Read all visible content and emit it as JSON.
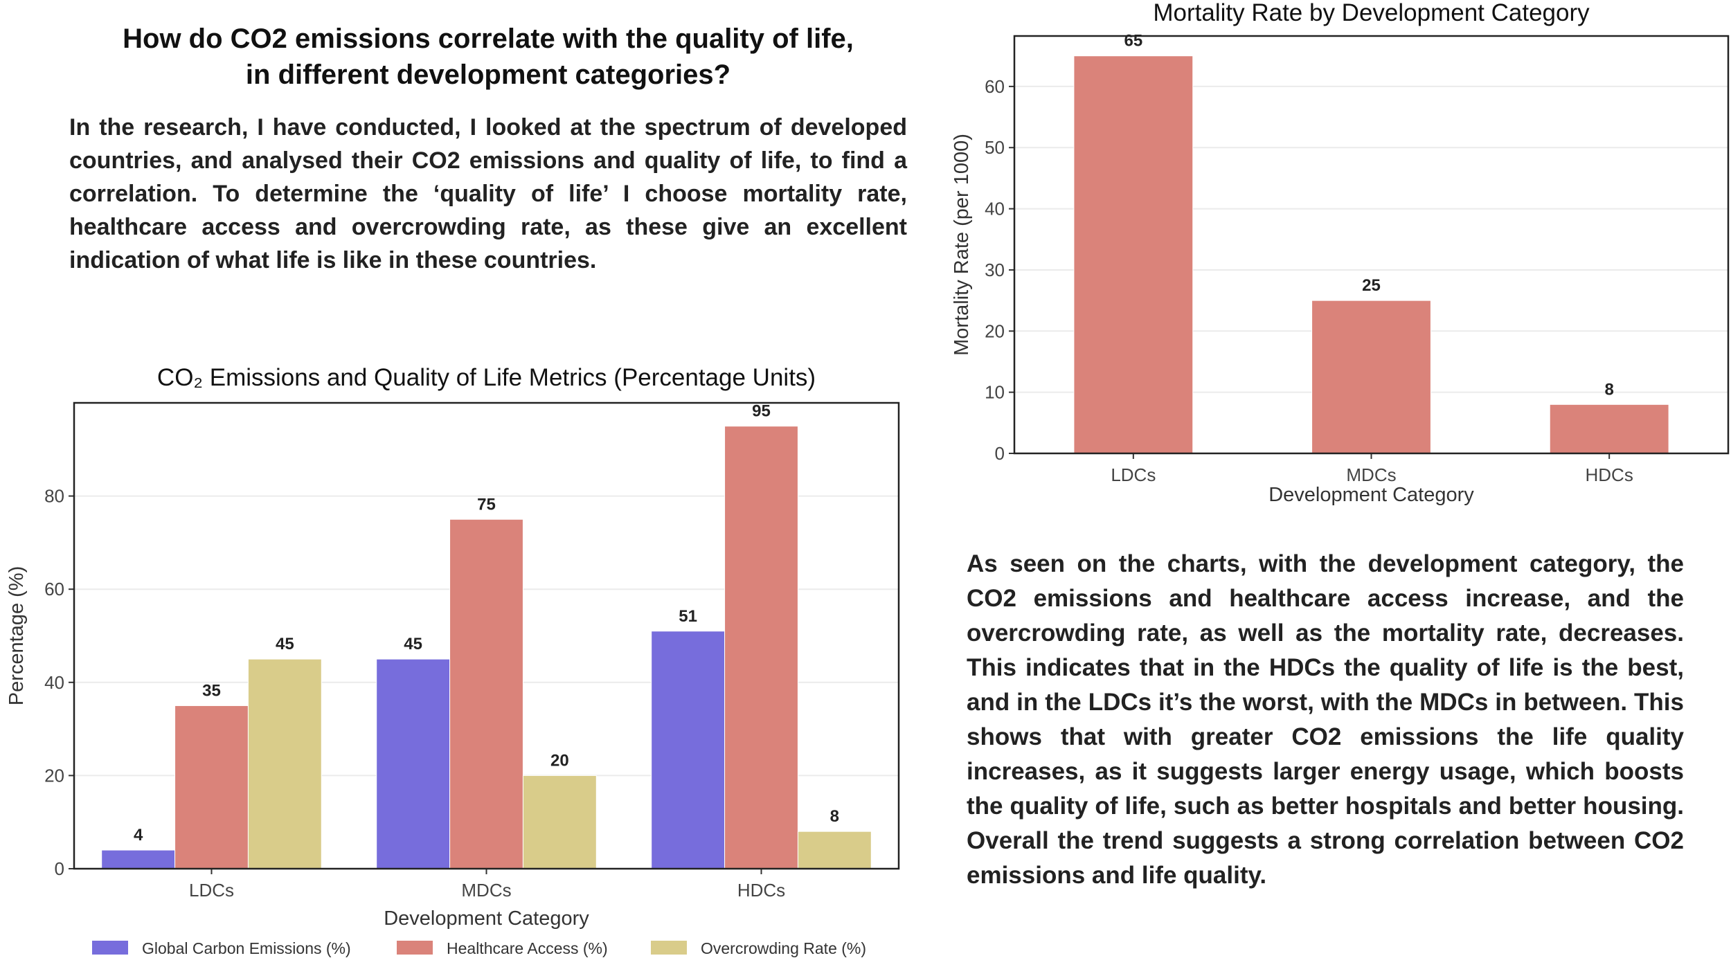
{
  "heading": "How do CO2 emissions correlate with the quality of life, in different development categories?",
  "intro_paragraph": "In the research, I have conducted, I looked at the spectrum of developed countries, and analysed their CO2 emissions and quality of life, to find a correlation. To determine the ‘quality of life’ I choose mortality rate, healthcare access and overcrowding rate, as these give an excellent indication of what life is like in these countries.",
  "conclusion_paragraph": "As seen on the charts, with the development category, the CO2 emissions and healthcare access increase, and the overcrowding rate, as well as the mortality rate, decreases. This indicates that in the HDCs the quality of life is the best, and in the LDCs it’s the worst, with the MDCs in between. This shows that with greater CO2 emissions the life quality increases, as it suggests larger energy usage, which boosts the quality of life, such as better hospitals and better housing. Overall the trend suggests a strong correlation between CO2 emissions and life quality.",
  "chart_data": [
    {
      "type": "bar",
      "title": "CO₂ Emissions and Quality of Life Metrics (Percentage Units)",
      "xlabel": "Development Category",
      "ylabel": "Percentage (%)",
      "categories": [
        "LDCs",
        "MDCs",
        "HDCs"
      ],
      "series": [
        {
          "name": "Global Carbon Emissions (%)",
          "values": [
            4,
            45,
            51
          ],
          "color": "#776ddc"
        },
        {
          "name": "Healthcare Access (%)",
          "values": [
            35,
            75,
            95
          ],
          "color": "#da837a"
        },
        {
          "name": "Overcrowding Rate (%)",
          "values": [
            45,
            20,
            8
          ],
          "color": "#d9cc8a"
        }
      ],
      "ylim": [
        0,
        100
      ],
      "yticks": [
        0,
        20,
        40,
        60,
        80
      ],
      "grid": true,
      "legend": "bottom"
    },
    {
      "type": "bar",
      "title": "Mortality Rate by Development Category",
      "xlabel": "Development Category",
      "ylabel": "Mortality Rate (per 1000)",
      "categories": [
        "LDCs",
        "MDCs",
        "HDCs"
      ],
      "values": [
        65,
        25,
        8
      ],
      "color": "#da837a",
      "ylim": [
        0,
        68.25
      ],
      "yticks": [
        0,
        10,
        20,
        30,
        40,
        50,
        60
      ],
      "grid": true
    }
  ]
}
